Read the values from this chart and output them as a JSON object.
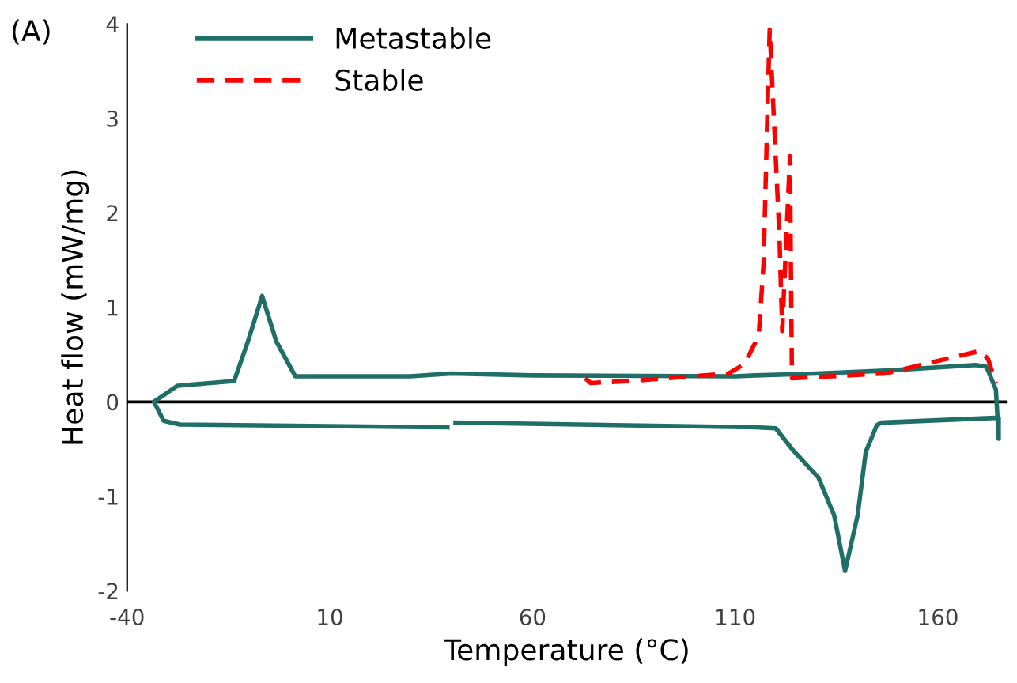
{
  "chart_data": {
    "type": "line",
    "xlabel": "Temperature (°C)",
    "ylabel": "Heat flow (mW/mg)",
    "annotations": [
      "(A)"
    ],
    "xlim": [
      -40,
      177
    ],
    "ylim": [
      -2,
      4
    ],
    "xticks": [
      -40,
      10,
      60,
      110,
      160
    ],
    "yticks": [
      -2,
      -1,
      0,
      1,
      2,
      3,
      4
    ],
    "grid": false,
    "legend": "top left",
    "marker": "none",
    "ref_lines": [
      {
        "axis": "y",
        "value": 0,
        "color": "#000000"
      }
    ],
    "series": [
      {
        "name": "Metastable",
        "color": "#1f6e68",
        "line_style": "solid",
        "x": [
          39,
          -27,
          -31,
          -33.4,
          -27.6,
          -13.6,
          -10.2,
          -6.7,
          -3.2,
          1.5,
          29.8,
          40,
          60,
          110,
          115,
          130,
          147,
          169.3,
          172,
          174.3,
          175,
          175,
          174,
          146,
          144.9,
          142.2,
          140.2,
          137.1,
          134.4,
          130.5,
          124,
          120,
          115,
          41
        ],
        "values": [
          -0.27,
          -0.24,
          -0.2,
          0,
          0.17,
          0.22,
          0.64,
          1.12,
          0.64,
          0.27,
          0.27,
          0.3,
          0.28,
          0.27,
          0.28,
          0.3,
          0.33,
          0.39,
          0.37,
          0.13,
          -0.39,
          -0.17,
          -0.17,
          -0.22,
          -0.25,
          -0.53,
          -1.2,
          -1.79,
          -1.2,
          -0.8,
          -0.5,
          -0.28,
          -0.27,
          -0.22
        ]
      },
      {
        "name": "Stable",
        "color": "#ff0000",
        "line_style": "dashed",
        "x": [
          73,
          74.3,
          84,
          108.4,
          112.3,
          115.8,
          117,
          118,
          118.5,
          120.9,
          121.6,
          123.5,
          123.7,
          124,
          147,
          166.6,
          170.5,
          172.4,
          174.3
        ],
        "values": [
          0.25,
          0.2,
          0.22,
          0.3,
          0.4,
          0.7,
          1.47,
          3.15,
          3.94,
          1.76,
          0.75,
          2.6,
          1.6,
          0.25,
          0.3,
          0.5,
          0.54,
          0.45,
          0.2
        ]
      }
    ]
  }
}
